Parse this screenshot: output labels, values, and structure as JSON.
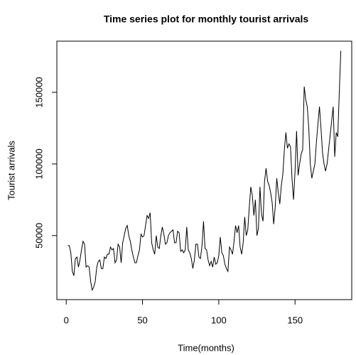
{
  "chart_data": {
    "type": "line",
    "title": "Time series plot for monthly tourist arrivals",
    "x_label": "Time(months)",
    "y_label": "Tourist arrivals",
    "x": [
      1,
      2,
      3,
      4,
      5,
      6,
      7,
      8,
      9,
      10,
      11,
      12,
      13,
      14,
      15,
      16,
      17,
      18,
      19,
      20,
      21,
      22,
      23,
      24,
      25,
      26,
      27,
      28,
      29,
      30,
      31,
      32,
      33,
      34,
      35,
      36,
      37,
      38,
      39,
      40,
      41,
      42,
      43,
      44,
      45,
      46,
      47,
      48,
      49,
      50,
      51,
      52,
      53,
      54,
      55,
      56,
      57,
      58,
      59,
      60,
      61,
      62,
      63,
      64,
      65,
      66,
      67,
      68,
      69,
      70,
      71,
      72,
      73,
      74,
      75,
      76,
      77,
      78,
      79,
      80,
      81,
      82,
      83,
      84,
      85,
      86,
      87,
      88,
      89,
      90,
      91,
      92,
      93,
      94,
      95,
      96,
      97,
      98,
      99,
      100,
      101,
      102,
      103,
      104,
      105,
      106,
      107,
      108,
      109,
      110,
      111,
      112,
      113,
      114,
      115,
      116,
      117,
      118,
      119,
      120,
      121,
      122,
      123,
      124,
      125,
      126,
      127,
      128,
      129,
      130,
      131,
      132,
      133,
      134,
      135,
      136,
      137,
      138,
      139,
      140,
      141,
      142,
      143,
      144,
      145,
      146,
      147,
      148,
      149,
      150,
      151,
      152,
      153,
      154,
      155,
      156,
      157,
      158,
      159,
      160,
      161,
      162,
      163,
      164,
      165,
      166,
      167,
      168,
      169,
      170,
      171,
      172,
      173,
      174,
      175,
      176,
      177,
      178,
      179,
      180
    ],
    "series": [
      {
        "name": "Tourist arrivals",
        "color": "#000000",
        "values": [
          43000,
          43000,
          38000,
          25000,
          22000,
          34000,
          35000,
          28000,
          33000,
          40000,
          46000,
          44000,
          28000,
          29000,
          28000,
          18000,
          12000,
          14000,
          18000,
          28000,
          32000,
          33000,
          27000,
          27000,
          35000,
          34000,
          37000,
          37000,
          42000,
          40000,
          41000,
          31000,
          33000,
          44000,
          42000,
          31000,
          45000,
          50000,
          55000,
          57000,
          50000,
          46000,
          40000,
          35000,
          31000,
          31000,
          36000,
          40000,
          51000,
          49000,
          50000,
          57000,
          64000,
          62000,
          66000,
          45000,
          40000,
          37000,
          50000,
          42000,
          41000,
          50000,
          56000,
          51000,
          44000,
          45000,
          50000,
          52000,
          53000,
          54000,
          45000,
          45000,
          53000,
          52000,
          39000,
          40000,
          38000,
          40000,
          56000,
          40000,
          38000,
          34000,
          27000,
          33000,
          44000,
          44000,
          35000,
          34000,
          43000,
          60000,
          41000,
          40000,
          33000,
          29000,
          32000,
          28000,
          35000,
          30000,
          31000,
          36000,
          49000,
          38000,
          36000,
          30000,
          27000,
          25000,
          42000,
          40000,
          37000,
          46000,
          57000,
          52000,
          57000,
          42000,
          37000,
          45000,
          63000,
          50000,
          54000,
          70000,
          84000,
          78000,
          64000,
          75000,
          50000,
          55000,
          84000,
          65000,
          60000,
          88000,
          97000,
          88000,
          85000,
          80000,
          73000,
          58000,
          70000,
          90000,
          80000,
          72000,
          85000,
          93000,
          110000,
          122000,
          111000,
          114000,
          112000,
          90000,
          75000,
          95000,
          123000,
          92000,
          100000,
          107000,
          110000,
          154000,
          145000,
          140000,
          125000,
          100000,
          90000,
          95000,
          100000,
          115000,
          128000,
          140000,
          125000,
          108000,
          100000,
          95000,
          100000,
          110000,
          120000,
          130000,
          140000,
          105000,
          122000,
          119000,
          150000,
          179000
        ]
      }
    ],
    "xlim": [
      -6.16,
      187.16
    ],
    "ylim": [
      5300,
      185700
    ],
    "xticks": [
      0,
      50,
      100,
      150
    ],
    "yticks": [
      50000,
      100000,
      150000
    ]
  }
}
